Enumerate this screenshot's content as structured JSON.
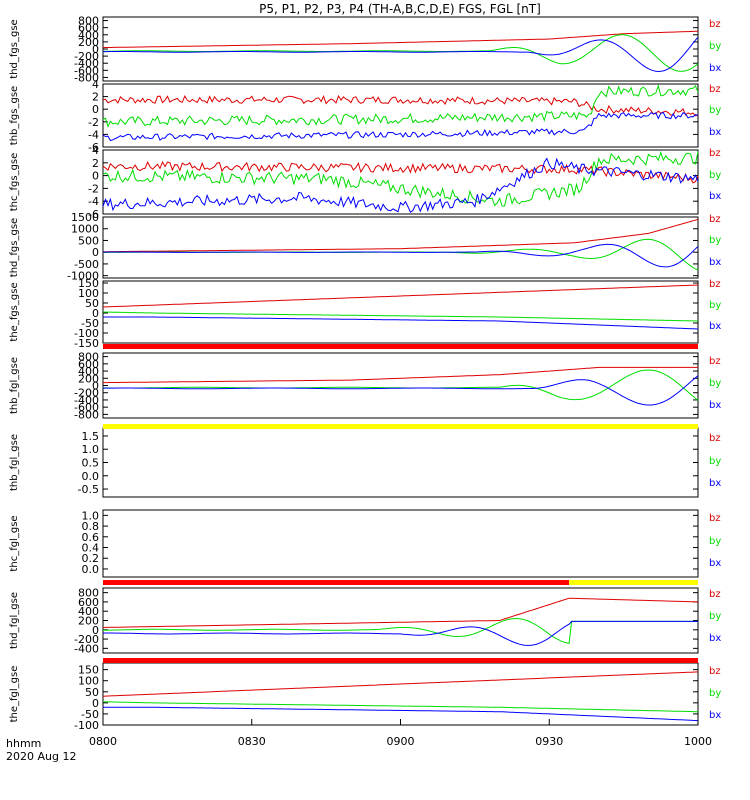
{
  "title": "P5, P1, P2, P3, P4 (TH-A,B,C,D,E) FGS, FGL [nT]",
  "footer": {
    "time_label": "hhmm",
    "date_label": "2020 Aug 12"
  },
  "x_axis": {
    "range": [
      0,
      120
    ],
    "ticks": [
      "0800",
      "0830",
      "0900",
      "0930",
      "1000"
    ]
  },
  "colors": {
    "bx": "#0000ff",
    "by": "#00dd00",
    "bz": "#dd0000",
    "flag_red": "#ff0000",
    "flag_yellow": "#ffff00"
  },
  "legend": [
    "bz",
    "by",
    "bx"
  ],
  "chart_data": [
    {
      "type": "line",
      "probe": "thd",
      "ylabel": "thd_fgs_gse",
      "ylim": [
        -900,
        900
      ],
      "yticks": [
        "800",
        "600",
        "400",
        "200",
        "0",
        "-200",
        "-400",
        "-600",
        "-800"
      ],
      "series": [
        {
          "name": "bz",
          "kind": "poly",
          "x": [
            0,
            50,
            90,
            105,
            120
          ],
          "y": [
            40,
            150,
            280,
            430,
            500
          ]
        },
        {
          "name": "by",
          "kind": "wave",
          "amp": [
            10,
            10,
            350,
            600
          ],
          "ampx": [
            0,
            78,
            92,
            120
          ],
          "period": 24,
          "phase": 0.9,
          "offset": -60
        },
        {
          "name": "bx",
          "kind": "wave",
          "amp": [
            10,
            10,
            300,
            700
          ],
          "ampx": [
            0,
            86,
            98,
            120
          ],
          "period": 24,
          "phase": 0.1,
          "offset": -80
        }
      ]
    },
    {
      "type": "line",
      "probe": "thb",
      "ylabel": "thb_fgs_gse",
      "ylim": [
        -6,
        4
      ],
      "yticks": [
        "4",
        "2",
        "0",
        "-2",
        "-4",
        "-6"
      ],
      "series": [
        {
          "name": "bz",
          "kind": "noisy",
          "x": [
            0,
            60,
            95,
            100,
            120
          ],
          "y": [
            1.5,
            1.5,
            1.2,
            0,
            -0.5
          ],
          "noise": 0.6
        },
        {
          "name": "by",
          "kind": "noisy",
          "x": [
            0,
            60,
            98,
            100,
            120
          ],
          "y": [
            -2,
            -1.5,
            -1,
            2.8,
            3
          ],
          "noise": 0.8
        },
        {
          "name": "bx",
          "kind": "noisy",
          "x": [
            0,
            60,
            97,
            100,
            120
          ],
          "y": [
            -4.5,
            -4,
            -3.5,
            -1,
            -1
          ],
          "noise": 0.5
        }
      ]
    },
    {
      "type": "line",
      "probe": "thc",
      "ylabel": "thc_fgs_gse",
      "ylim": [
        -6,
        4
      ],
      "yticks": [
        "4",
        "2",
        "0",
        "-2",
        "-4",
        "-6"
      ],
      "series": [
        {
          "name": "bz",
          "kind": "noisy",
          "x": [
            0,
            60,
            95,
            120
          ],
          "y": [
            1.5,
            1.2,
            1,
            -0.5
          ],
          "noise": 0.7
        },
        {
          "name": "by",
          "kind": "noisy",
          "x": [
            0,
            45,
            80,
            96,
            100,
            120
          ],
          "y": [
            0,
            -0.5,
            -4,
            -2,
            2.5,
            2.8
          ],
          "noise": 1
        },
        {
          "name": "bx",
          "kind": "noisy",
          "x": [
            0,
            40,
            60,
            75,
            90,
            96,
            120
          ],
          "y": [
            -4.5,
            -3.5,
            -5,
            -4,
            2,
            1,
            -0.5
          ],
          "noise": 0.9
        }
      ]
    },
    {
      "type": "line",
      "probe": "thd",
      "ylabel": "thd_fgs_gse",
      "ylim": [
        -1100,
        1500
      ],
      "yticks": [
        "1500",
        "1000",
        "500",
        "0",
        "-500",
        "-1000"
      ],
      "series": [
        {
          "name": "bz",
          "kind": "poly",
          "x": [
            0,
            60,
            95,
            110,
            120
          ],
          "y": [
            20,
            150,
            400,
            800,
            1400
          ]
        },
        {
          "name": "by",
          "kind": "wave",
          "amp": [
            10,
            10,
            200,
            800
          ],
          "ampx": [
            0,
            70,
            95,
            120
          ],
          "period": 24,
          "phase": 0.7,
          "offset": 0
        },
        {
          "name": "bx",
          "kind": "wave",
          "amp": [
            10,
            10,
            250,
            800
          ],
          "ampx": [
            0,
            75,
            98,
            120
          ],
          "period": 24,
          "phase": 0.05,
          "offset": 0
        }
      ]
    },
    {
      "type": "line",
      "probe": "the",
      "ylabel": "the_fgs_gse",
      "ylim": [
        -150,
        160
      ],
      "yticks": [
        "150",
        "100",
        "50",
        "0",
        "-50",
        "-100",
        "-150"
      ],
      "series": [
        {
          "name": "bz",
          "kind": "poly",
          "x": [
            0,
            120
          ],
          "y": [
            30,
            140
          ]
        },
        {
          "name": "by",
          "kind": "poly",
          "x": [
            0,
            10,
            80,
            120
          ],
          "y": [
            5,
            0,
            -20,
            -40
          ]
        },
        {
          "name": "bx",
          "kind": "poly",
          "x": [
            0,
            10,
            80,
            120
          ],
          "y": [
            -20,
            -20,
            -40,
            -80
          ]
        }
      ]
    },
    {
      "type": "line",
      "probe": "thb",
      "ylabel": "thb_fgl_gse",
      "ylim": [
        -900,
        900
      ],
      "yticks": [
        "800",
        "600",
        "400",
        "200",
        "0",
        "-200",
        "-400",
        "-600",
        "-800"
      ],
      "series": [
        {
          "name": "bz",
          "kind": "poly",
          "x": [
            0,
            50,
            80,
            100,
            120
          ],
          "y": [
            80,
            150,
            300,
            500,
            500
          ]
        },
        {
          "name": "by",
          "kind": "wave",
          "amp": [
            10,
            10,
            300,
            600
          ],
          "ampx": [
            0,
            80,
            92,
            120
          ],
          "period": 30,
          "phase": 0.6,
          "offset": -60
        },
        {
          "name": "bx",
          "kind": "wave",
          "amp": [
            10,
            10,
            300,
            600
          ],
          "ampx": [
            0,
            86,
            98,
            120
          ],
          "period": 30,
          "phase": 0.1,
          "offset": -80
        }
      ]
    },
    {
      "type": "line",
      "probe": "thb",
      "ylabel": "thb_fgl_gse",
      "ylim": [
        -0.8,
        1.8
      ],
      "yticks": [
        "1.5",
        "1.0",
        "0.5",
        "0.0",
        "-0.5"
      ],
      "series": []
    },
    {
      "type": "line",
      "probe": "thc",
      "ylabel": "thc_fgl_gse",
      "ylim": [
        -0.15,
        1.1
      ],
      "yticks": [
        "1.0",
        "0.8",
        "0.6",
        "0.4",
        "0.2",
        "0.0"
      ],
      "series": []
    },
    {
      "type": "line",
      "probe": "thd",
      "ylabel": "thd_fgl_gse",
      "ylim": [
        -500,
        900
      ],
      "yticks": [
        "800",
        "600",
        "400",
        "200",
        "0",
        "-200",
        "-400"
      ],
      "series": [
        {
          "name": "bz",
          "kind": "poly",
          "x": [
            0,
            80,
            94,
            120
          ],
          "y": [
            50,
            200,
            680,
            600
          ]
        },
        {
          "name": "by",
          "kind": "wave",
          "amp": [
            10,
            10,
            300,
            300
          ],
          "ampx": [
            0,
            55,
            90,
            94
          ],
          "period": 24,
          "phase": 0.8,
          "offset": 0,
          "tail": 180,
          "tailx": 94
        },
        {
          "name": "bx",
          "kind": "wave",
          "amp": [
            10,
            10,
            300,
            300
          ],
          "ampx": [
            0,
            60,
            90,
            94
          ],
          "period": 24,
          "phase": 0.2,
          "offset": -80,
          "tail": 180,
          "tailx": 94
        }
      ]
    },
    {
      "type": "line",
      "probe": "the",
      "ylabel": "the_fgl_gse",
      "ylim": [
        -100,
        180
      ],
      "yticks": [
        "150",
        "100",
        "50",
        "0",
        "-50",
        "-100"
      ],
      "series": [
        {
          "name": "bz",
          "kind": "poly",
          "x": [
            0,
            120
          ],
          "y": [
            30,
            140
          ]
        },
        {
          "name": "by",
          "kind": "poly",
          "x": [
            0,
            10,
            80,
            120
          ],
          "y": [
            5,
            0,
            -20,
            -40
          ]
        },
        {
          "name": "bx",
          "kind": "poly",
          "x": [
            0,
            10,
            80,
            120
          ],
          "y": [
            -20,
            -20,
            -40,
            -80
          ]
        }
      ]
    }
  ],
  "flag_bars": [
    {
      "after_panel": 4,
      "segments": [
        {
          "color": "red",
          "from": 0,
          "to": 120
        }
      ]
    },
    {
      "after_panel": 5,
      "segments": [
        {
          "color": "yellow",
          "from": 0,
          "to": 120
        }
      ]
    },
    {
      "after_panel": 7,
      "segments": [
        {
          "color": "red",
          "from": 0,
          "to": 94
        },
        {
          "color": "yellow",
          "from": 94,
          "to": 120
        }
      ]
    },
    {
      "after_panel": 8,
      "segments": [
        {
          "color": "red",
          "from": 0,
          "to": 120
        }
      ]
    }
  ]
}
